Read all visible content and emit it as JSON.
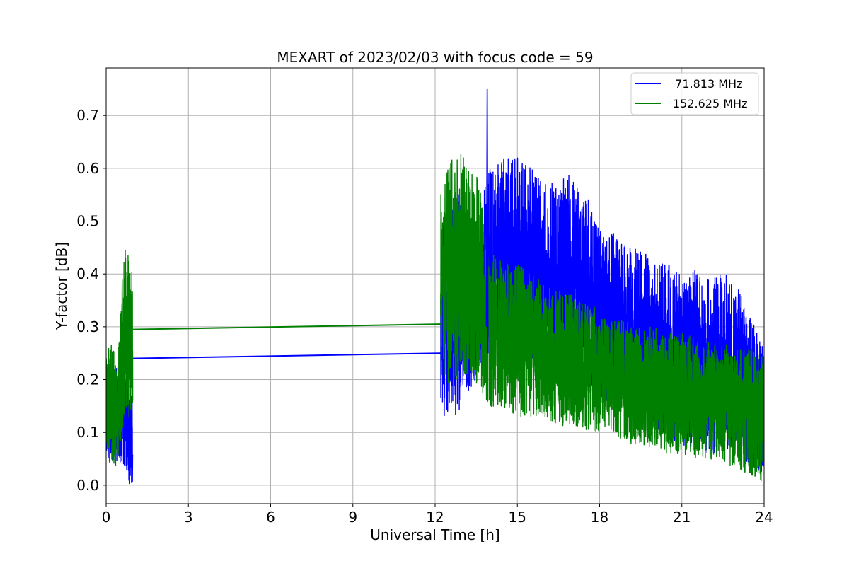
{
  "chart_data": {
    "type": "line",
    "title": "MEXART of 2023/02/03 with focus code = 59",
    "xlabel": "Universal Time [h]",
    "ylabel": "Y-factor [dB]",
    "xlim": [
      0,
      24
    ],
    "ylim": [
      -0.035,
      0.79
    ],
    "xticks": [
      0,
      3,
      6,
      9,
      12,
      15,
      18,
      21,
      24
    ],
    "xtick_labels": [
      "0",
      "3",
      "6",
      "9",
      "12",
      "15",
      "18",
      "21",
      "24"
    ],
    "yticks": [
      0.0,
      0.1,
      0.2,
      0.3,
      0.4,
      0.5,
      0.6,
      0.7
    ],
    "ytick_labels": [
      "0.0",
      "0.1",
      "0.2",
      "0.3",
      "0.4",
      "0.5",
      "0.6",
      "0.7"
    ],
    "grid": true,
    "legend_position": "top-right",
    "series": [
      {
        "name": "  71.813 MHz",
        "color": "#0000ff",
        "segments": [
          {
            "x": [
              0.0,
              0.1,
              0.2,
              0.3,
              0.4,
              0.5,
              0.6,
              0.7,
              0.8,
              0.9,
              0.97
            ],
            "y": [
              0.15,
              0.24,
              0.1,
              0.22,
              0.05,
              0.2,
              0.12,
              0.0,
              0.1,
              0.0,
              0.24
            ]
          },
          {
            "x": [
              0.97,
              12.2
            ],
            "y": [
              0.24,
              0.25
            ]
          },
          {
            "x": [
              12.2,
              12.5,
              13.0,
              13.5,
              13.9,
              14.0,
              14.5,
              15.0,
              15.5,
              16.0,
              16.5,
              17.0,
              17.5,
              18.0,
              18.5,
              19.0,
              19.5,
              20.0,
              20.5,
              21.0,
              21.5,
              22.0,
              22.5,
              23.0,
              23.5,
              24.0
            ],
            "y": [
              0.25,
              0.3,
              0.32,
              0.35,
              0.75,
              0.42,
              0.45,
              0.45,
              0.44,
              0.42,
              0.4,
              0.4,
              0.38,
              0.35,
              0.33,
              0.33,
              0.32,
              0.3,
              0.3,
              0.28,
              0.27,
              0.27,
              0.26,
              0.25,
              0.23,
              0.22
            ]
          }
        ],
        "envelope": {
          "x": [
            0.0,
            0.2,
            0.4,
            0.6,
            0.8,
            0.97,
            12.2,
            12.6,
            13.0,
            13.5,
            14.0,
            14.5,
            15.0,
            15.5,
            16.0,
            16.5,
            17.0,
            17.5,
            18.0,
            18.5,
            19.0,
            19.5,
            20.0,
            20.5,
            21.0,
            21.5,
            22.0,
            22.5,
            23.0,
            23.5,
            24.0
          ],
          "hi": [
            0.25,
            0.23,
            0.22,
            0.25,
            0.2,
            0.17,
            0.5,
            0.55,
            0.55,
            0.5,
            0.6,
            0.62,
            0.62,
            0.6,
            0.58,
            0.58,
            0.59,
            0.56,
            0.5,
            0.48,
            0.45,
            0.45,
            0.42,
            0.42,
            0.4,
            0.41,
            0.4,
            0.41,
            0.38,
            0.32,
            0.27
          ],
          "lo": [
            0.06,
            0.04,
            0.03,
            0.04,
            0.0,
            0.0,
            0.14,
            0.1,
            0.16,
            0.2,
            0.22,
            0.25,
            0.25,
            0.24,
            0.22,
            0.2,
            0.2,
            0.17,
            0.15,
            0.14,
            0.13,
            0.12,
            0.1,
            0.09,
            0.07,
            0.07,
            0.06,
            0.06,
            0.05,
            0.03,
            0.02
          ]
        }
      },
      {
        "name": "152.625 MHz",
        "color": "#008000",
        "segments": [
          {
            "x": [
              0.0,
              0.1,
              0.2,
              0.3,
              0.4,
              0.5,
              0.6,
              0.7,
              0.8,
              0.9,
              0.97
            ],
            "y": [
              0.2,
              0.26,
              0.15,
              0.23,
              0.1,
              0.2,
              0.43,
              0.25,
              0.45,
              0.3,
              0.29
            ]
          },
          {
            "x": [
              0.97,
              12.2
            ],
            "y": [
              0.295,
              0.305
            ]
          },
          {
            "x": [
              12.2,
              12.5,
              13.0,
              13.5,
              14.0,
              14.5,
              15.0,
              15.5,
              16.0,
              16.5,
              17.0,
              17.5,
              18.0,
              18.5,
              19.0,
              19.5,
              20.0,
              20.5,
              21.0,
              21.5,
              22.0,
              22.5,
              23.0,
              23.5,
              24.0
            ],
            "y": [
              0.3,
              0.45,
              0.38,
              0.35,
              0.3,
              0.28,
              0.27,
              0.27,
              0.26,
              0.25,
              0.24,
              0.23,
              0.22,
              0.22,
              0.21,
              0.2,
              0.2,
              0.19,
              0.18,
              0.18,
              0.17,
              0.17,
              0.16,
              0.15,
              0.14
            ]
          }
        ],
        "envelope": {
          "x": [
            0.0,
            0.2,
            0.4,
            0.6,
            0.8,
            0.97,
            12.2,
            12.6,
            13.0,
            13.5,
            14.0,
            14.5,
            15.0,
            15.5,
            16.0,
            16.5,
            17.0,
            17.5,
            18.0,
            18.5,
            19.0,
            19.5,
            20.0,
            20.5,
            21.0,
            21.5,
            22.0,
            22.5,
            23.0,
            23.5,
            24.0
          ],
          "hi": [
            0.25,
            0.27,
            0.23,
            0.44,
            0.46,
            0.42,
            0.58,
            0.62,
            0.64,
            0.6,
            0.45,
            0.42,
            0.42,
            0.4,
            0.38,
            0.37,
            0.36,
            0.35,
            0.33,
            0.32,
            0.31,
            0.3,
            0.3,
            0.29,
            0.29,
            0.28,
            0.27,
            0.27,
            0.26,
            0.26,
            0.25
          ],
          "lo": [
            0.06,
            0.03,
            0.04,
            0.1,
            0.12,
            0.15,
            0.18,
            0.2,
            0.2,
            0.19,
            0.15,
            0.14,
            0.13,
            0.13,
            0.12,
            0.11,
            0.11,
            0.1,
            0.1,
            0.09,
            0.08,
            0.07,
            0.07,
            0.06,
            0.06,
            0.05,
            0.05,
            0.04,
            0.03,
            0.02,
            0.0
          ]
        }
      }
    ]
  }
}
